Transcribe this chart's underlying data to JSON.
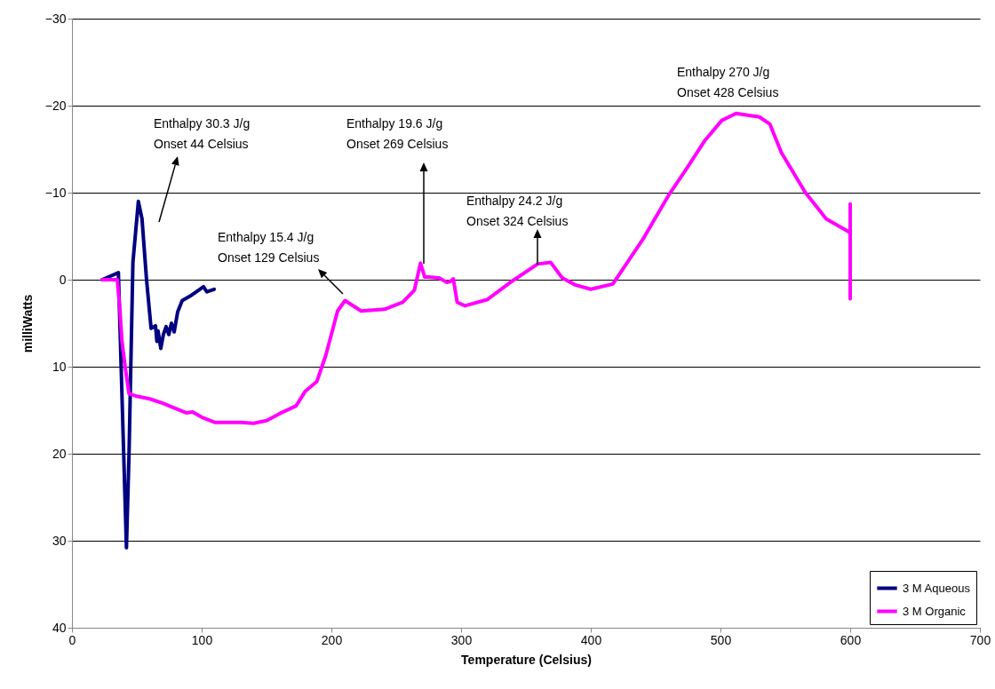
{
  "chart_data": {
    "type": "line",
    "xlabel": "Temperature (Celsius)",
    "ylabel": "milliWatts",
    "xlim": [
      0,
      700
    ],
    "xticks": [
      0,
      100,
      200,
      300,
      400,
      500,
      600,
      700
    ],
    "ylim": [
      40,
      -30
    ],
    "yticks": [
      -30,
      -20,
      -10,
      0,
      10,
      20,
      30,
      40
    ],
    "grid": "y",
    "legend": "bottom right",
    "marker": "none",
    "line_style": "solid",
    "series": [
      {
        "name": "3 M Aqueous",
        "color": "#000080",
        "x": [
          23.3,
          35.8,
          42,
          44,
          47,
          51.2,
          54,
          57.5,
          61,
          64.4,
          65.5,
          66.4,
          68.5,
          70.5,
          72.6,
          74.7,
          76.7,
          78.8,
          81.5,
          85,
          91,
          98.6,
          101.4,
          104,
          109.6
        ],
        "values": [
          0,
          -0.8,
          30.8,
          20,
          -2,
          -9,
          -7,
          0,
          5.6,
          5.3,
          7.1,
          5.9,
          7.9,
          6.3,
          5.4,
          6.3,
          5,
          6,
          3.7,
          2.4,
          1.9,
          1.1,
          0.8,
          1.4,
          1.1
        ]
      },
      {
        "name": "3 M Organic",
        "color": "#ff00ff",
        "x": [
          23.3,
          35,
          37,
          38.5,
          41,
          44,
          50,
          60,
          70,
          80,
          88,
          93,
          100,
          110,
          120,
          130,
          140,
          150,
          160,
          172.8,
          180,
          188.8,
          195.7,
          204.8,
          210.5,
          223,
          241,
          255,
          264,
          268.7,
          272,
          275,
          283,
          289,
          291.8,
          294,
          297,
          303,
          320,
          340,
          359,
          369,
          378,
          388,
          400,
          417,
          440,
          460,
          474,
          488,
          501,
          512,
          530,
          538,
          547,
          565.5,
          581.5,
          600,
          600,
          600
        ],
        "values": [
          0,
          0,
          3.5,
          7,
          10,
          13.1,
          13.4,
          13.7,
          14.2,
          14.8,
          15.3,
          15.2,
          15.8,
          16.4,
          16.4,
          16.4,
          16.5,
          16.2,
          15.4,
          14.5,
          12.8,
          11.7,
          8.7,
          3.6,
          2.4,
          3.6,
          3.4,
          2.6,
          1.2,
          -1.9,
          -0.3,
          -0.3,
          -0.2,
          0.3,
          0.2,
          -0.1,
          2.6,
          3,
          2.3,
          0.1,
          -1.8,
          -2,
          -0.2,
          0.6,
          1.1,
          0.5,
          -4.6,
          -9.7,
          -12.8,
          -16,
          -18.3,
          -19.1,
          -18.7,
          -17.9,
          -14.6,
          -10,
          -7,
          -5.4,
          -8.7,
          2.2
        ]
      }
    ],
    "annotations": [
      "Enthalpy 30.3 J/g\nOnset 44 Celsius",
      "Enthalpy 15.4 J/g\nOnset 129 Celsius",
      "Enthalpy 19.6 J/g\nOnset 269 Celsius",
      "Enthalpy 24.2 J/g\nOnset 324 Celsius",
      "Enthalpy 270 J/g\nOnset 428 Celsius"
    ]
  }
}
